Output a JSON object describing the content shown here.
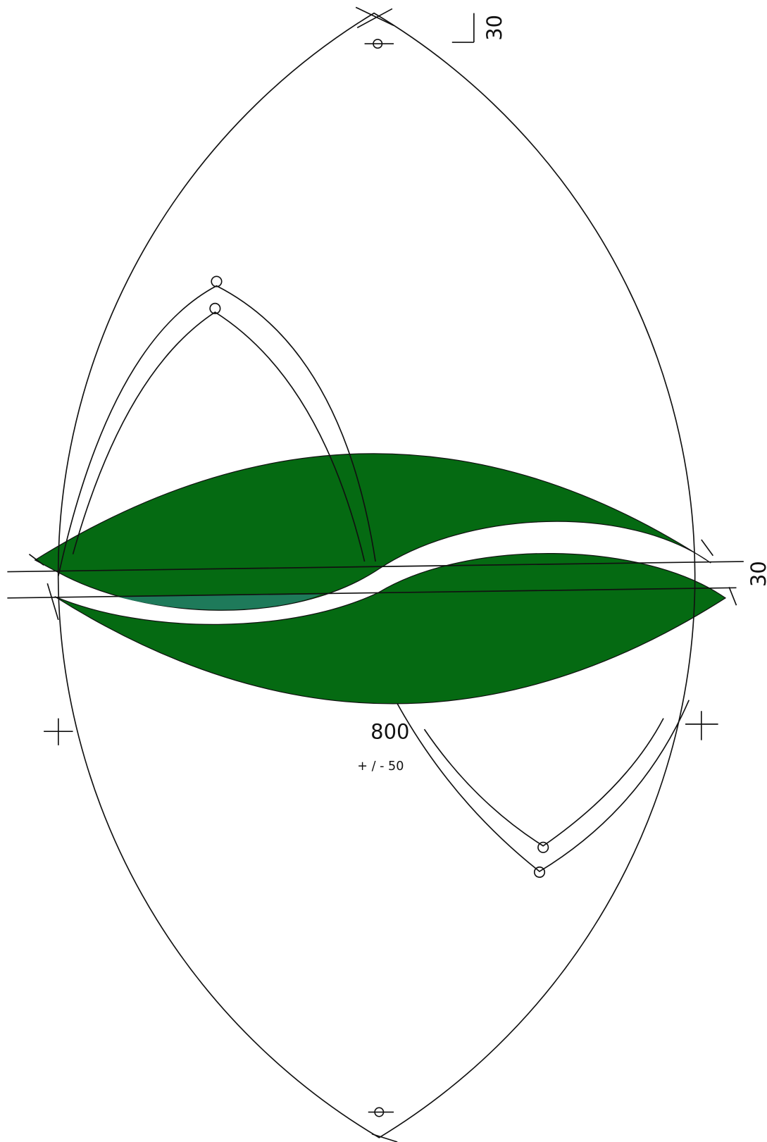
{
  "labels": {
    "top_dimension": "30",
    "side_dimension": "30",
    "length": "800",
    "tolerance": "+ / - 50"
  }
}
